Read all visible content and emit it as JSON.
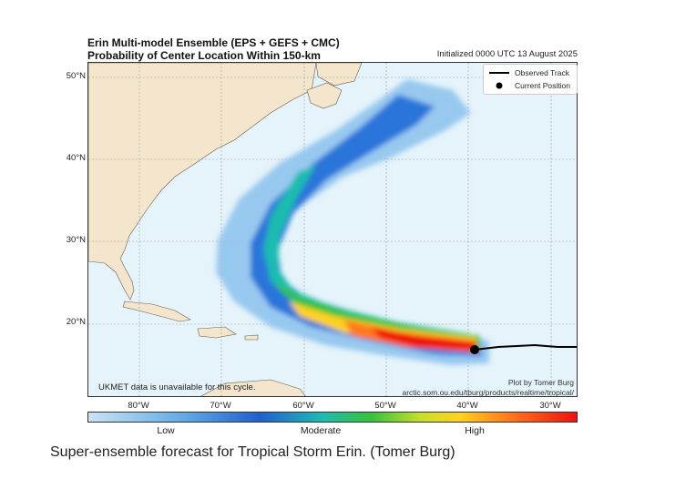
{
  "title": {
    "line1": "Erin Multi-model Ensemble (EPS + GEFS + CMC)",
    "line2": "Probability of Center Location Within 150-km",
    "initialized": "Initialized 0000 UTC 13 August 2025"
  },
  "axes": {
    "lat_ticks": [
      "50°N",
      "40°N",
      "30°N",
      "20°N"
    ],
    "lon_ticks": [
      "80°W",
      "70°W",
      "60°W",
      "50°W",
      "40°W",
      "30°W"
    ]
  },
  "legend": {
    "observed_track": "Observed Track",
    "current_position": "Current Position"
  },
  "notes": {
    "ukmet": "UKMET data is unavailable for this cycle.",
    "credit": "Plot by Tomer Burg",
    "url": "arctic.som.ou.edu/tburg/products/realtime/tropical/"
  },
  "colorbar": {
    "low": "Low",
    "moderate": "Moderate",
    "high": "High"
  },
  "caption": "Super-ensemble forecast for Tropical Storm Erin. (Tomer Burg)",
  "colors": {
    "ocean": "#e5f3fa",
    "land": "#f3e6cc",
    "low": "#5fa9e6",
    "moderate": "#36c23b",
    "high": "#f01010"
  }
}
